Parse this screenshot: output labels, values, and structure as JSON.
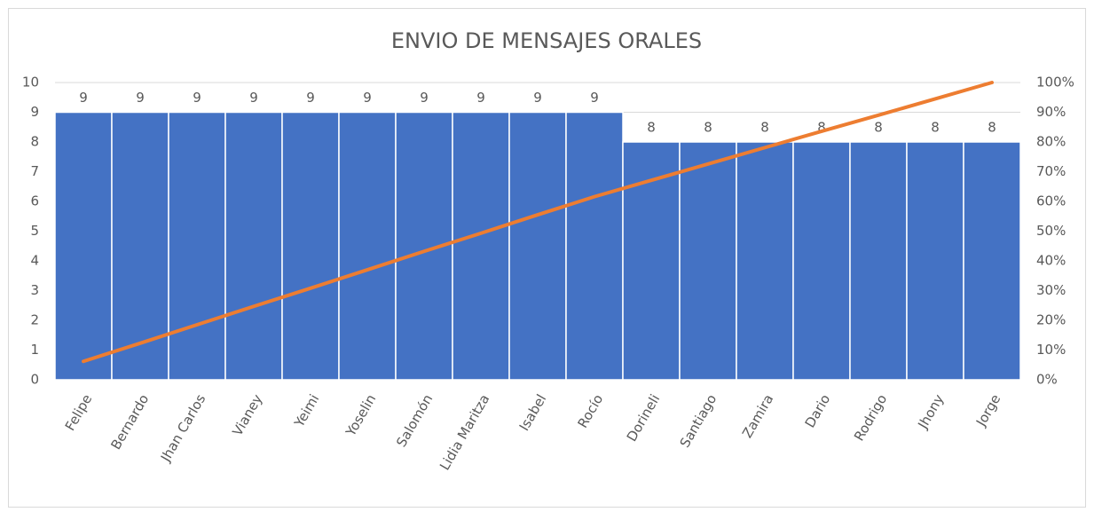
{
  "chart_data": {
    "type": "pareto",
    "title": "ENVIO DE MENSAJES ORALES",
    "categories": [
      "Felipe",
      "Bernardo",
      "Jhan Carlos",
      "Vianey",
      "Yeimi",
      "Yoselin",
      "Salomón",
      "Lidia Maritza",
      "Isabel",
      "Rocío",
      "Dorineli",
      "Santiago",
      "Zamira",
      "Dario",
      "Rodrigo",
      "Jhony",
      "Jorge"
    ],
    "series": [
      {
        "type": "bar",
        "color": "#4472c4",
        "values": [
          9,
          9,
          9,
          9,
          9,
          9,
          9,
          9,
          9,
          9,
          8,
          8,
          8,
          8,
          8,
          8,
          8
        ]
      },
      {
        "type": "line",
        "axis": "y2",
        "color": "#ed7d31",
        "values": [
          6.2,
          12.3,
          18.5,
          24.7,
          30.8,
          37.0,
          43.2,
          49.3,
          55.5,
          61.6,
          67.1,
          72.6,
          78.1,
          83.6,
          89.0,
          94.5,
          100
        ]
      }
    ],
    "ylim": [
      0,
      10
    ],
    "yticks": [
      0,
      1,
      2,
      3,
      4,
      5,
      6,
      7,
      8,
      9,
      10
    ],
    "y2lim": [
      0,
      100
    ],
    "y2ticks": [
      {
        "value": 0,
        "label": "0%"
      },
      {
        "value": 10,
        "label": "10%"
      },
      {
        "value": 20,
        "label": "20%"
      },
      {
        "value": 30,
        "label": "30%"
      },
      {
        "value": 40,
        "label": "40%"
      },
      {
        "value": 50,
        "label": "50%"
      },
      {
        "value": 60,
        "label": "60%"
      },
      {
        "value": 70,
        "label": "70%"
      },
      {
        "value": 80,
        "label": "80%"
      },
      {
        "value": 90,
        "label": "90%"
      },
      {
        "value": 100,
        "label": "100%"
      }
    ],
    "grid": true
  }
}
